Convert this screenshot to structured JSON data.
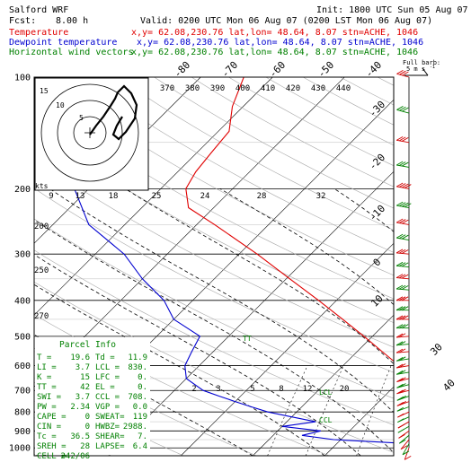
{
  "header": {
    "model": "Salford WRF",
    "init": "Init: 1800 UTC Sun 05 Aug 07",
    "fcst_label": "Fcst:",
    "fcst_value": "8.00 h",
    "valid": "Valid: 0200 UTC Mon 06 Aug 07 (0200 LST Mon 06 Aug 07)",
    "lines": [
      {
        "label": "Temperature",
        "info": "x,y= 62.08,230.76   lat,lon= 48.64,   8.07   stn=ACHE, 1046",
        "color": "#e00000"
      },
      {
        "label": "Dewpoint temperature",
        "info": "x,y= 62.08,230.76   lat,lon= 48.64,   8.07   stn=ACHE, 1046",
        "color": "#0000d0"
      },
      {
        "label": "Horizontal wind vectors",
        "info": "x,y= 62.08,230.76   lat,lon= 48.64,   8.07   stn=ACHE, 1046",
        "color": "#008000"
      }
    ]
  },
  "barb_legend": {
    "title": "Full barb:",
    "value": "5 m s",
    "unit_exp": "-1"
  },
  "hodograph": {
    "label": "kts",
    "ring_labels": [
      "5",
      "10",
      "15"
    ]
  },
  "parcel_info": {
    "title": "Parcel Info",
    "rows": [
      [
        "T    =",
        "19.6",
        "Td =",
        "11.9"
      ],
      [
        "LI   =",
        "3.7",
        "LCL =",
        "830."
      ],
      [
        "K    =",
        "15",
        "LFC =",
        "0."
      ],
      [
        "TT   =",
        "42",
        "EL  =",
        "0."
      ],
      [
        "SWI  =",
        "3.7",
        "CCL =",
        "708."
      ],
      [
        "PW   =",
        "2.34",
        "VGP =",
        "0.0"
      ],
      [
        "CAPE =",
        "0",
        "SWEAT=",
        "119"
      ],
      [
        "CIN  =",
        "0",
        "HWBZ=",
        "2988."
      ],
      [
        "Tc   =",
        "36.5",
        "SHEAR=",
        "7."
      ],
      [
        "SREH =",
        "28",
        "LAPSE=",
        "6.4"
      ],
      [
        "CELL =",
        "242/06",
        "",
        ""
      ]
    ]
  },
  "chart_data": {
    "type": "line",
    "title": "Skew-T log-p sounding",
    "ylabel": "Pressure (hPa)",
    "y_ticks": [
      100,
      200,
      300,
      400,
      500,
      600,
      700,
      800,
      900,
      1000
    ],
    "ylim": [
      100,
      1050
    ],
    "temp_top_labels": [
      "-80",
      "-70",
      "-60",
      "-50",
      "-40"
    ],
    "temp_right_labels": [
      "-30",
      "-20",
      "-10",
      "0",
      "10"
    ],
    "temp_bottom_labels": [
      "30",
      "40"
    ],
    "theta_labels": [
      "370",
      "380",
      "390",
      "400",
      "410",
      "420",
      "430",
      "440"
    ],
    "mixing_ratio_upper_labels": [
      "9",
      "13",
      "18",
      "25",
      "24",
      "28",
      "32"
    ],
    "mixing_ratio_lower_labels": [
      "2",
      "3",
      "5",
      "8",
      "12",
      "20"
    ],
    "altitude_labels": [
      "200",
      "250",
      "270"
    ],
    "level_marks": [
      "LCL",
      "CCL",
      "TT"
    ],
    "series": [
      {
        "name": "Temperature",
        "color": "#e00000",
        "points": [
          [
            1000,
            19.6
          ],
          [
            975,
            18.5
          ],
          [
            950,
            17.0
          ],
          [
            925,
            15.8
          ],
          [
            900,
            14.6
          ],
          [
            875,
            13.8
          ],
          [
            850,
            14.5
          ],
          [
            825,
            13.0
          ],
          [
            800,
            11.5
          ],
          [
            775,
            9.8
          ],
          [
            750,
            8.2
          ],
          [
            725,
            6.5
          ],
          [
            700,
            4.8
          ],
          [
            650,
            1.5
          ],
          [
            600,
            -2.2
          ],
          [
            550,
            -6.5
          ],
          [
            500,
            -11.2
          ],
          [
            450,
            -16.5
          ],
          [
            400,
            -22.5
          ],
          [
            350,
            -29.5
          ],
          [
            300,
            -37.5
          ],
          [
            250,
            -47.5
          ],
          [
            225,
            -53.5
          ],
          [
            200,
            -56.5
          ],
          [
            180,
            -57.5
          ],
          [
            160,
            -58.0
          ],
          [
            140,
            -58.5
          ],
          [
            120,
            -61.5
          ],
          [
            100,
            -64.0
          ]
        ]
      },
      {
        "name": "Dewpoint temperature",
        "color": "#0000d0",
        "points": [
          [
            1000,
            11.9
          ],
          [
            975,
            10.5
          ],
          [
            950,
            -1.0
          ],
          [
            925,
            -6.0
          ],
          [
            900,
            -4.0
          ],
          [
            875,
            -10.0
          ],
          [
            850,
            -6.0
          ],
          [
            825,
            -10.0
          ],
          [
            800,
            -14.0
          ],
          [
            775,
            -17.0
          ],
          [
            750,
            -20.0
          ],
          [
            725,
            -23.0
          ],
          [
            700,
            -26.0
          ],
          [
            650,
            -30.0
          ],
          [
            600,
            -32.0
          ],
          [
            550,
            -33.0
          ],
          [
            500,
            -34.0
          ],
          [
            450,
            -40.0
          ],
          [
            400,
            -44.0
          ],
          [
            350,
            -50.0
          ],
          [
            300,
            -56.0
          ],
          [
            250,
            -65.0
          ],
          [
            200,
            -72.0
          ],
          [
            150,
            -78.0
          ],
          [
            120,
            -78.0
          ],
          [
            100,
            -78.0
          ]
        ]
      }
    ],
    "wind_barbs": {
      "name": "Horizontal wind vectors",
      "levels": [
        1000,
        975,
        950,
        925,
        900,
        875,
        850,
        825,
        800,
        775,
        750,
        725,
        700,
        675,
        650,
        625,
        600,
        575,
        550,
        525,
        500,
        475,
        450,
        425,
        400,
        375,
        350,
        325,
        300,
        275,
        250,
        225,
        200,
        175,
        150,
        125,
        100
      ],
      "speed_ms": [
        3,
        4,
        5,
        5,
        6,
        6,
        6,
        7,
        7,
        7,
        8,
        8,
        8,
        9,
        9,
        10,
        10,
        11,
        11,
        12,
        12,
        13,
        13,
        14,
        14,
        15,
        15,
        16,
        16,
        17,
        17,
        18,
        18,
        17,
        16,
        15,
        14
      ],
      "dir_deg": [
        200,
        210,
        220,
        230,
        235,
        240,
        240,
        245,
        245,
        250,
        250,
        250,
        255,
        255,
        255,
        260,
        260,
        260,
        265,
        265,
        265,
        270,
        270,
        270,
        270,
        275,
        275,
        275,
        275,
        280,
        280,
        280,
        280,
        280,
        280,
        285,
        285
      ]
    }
  }
}
